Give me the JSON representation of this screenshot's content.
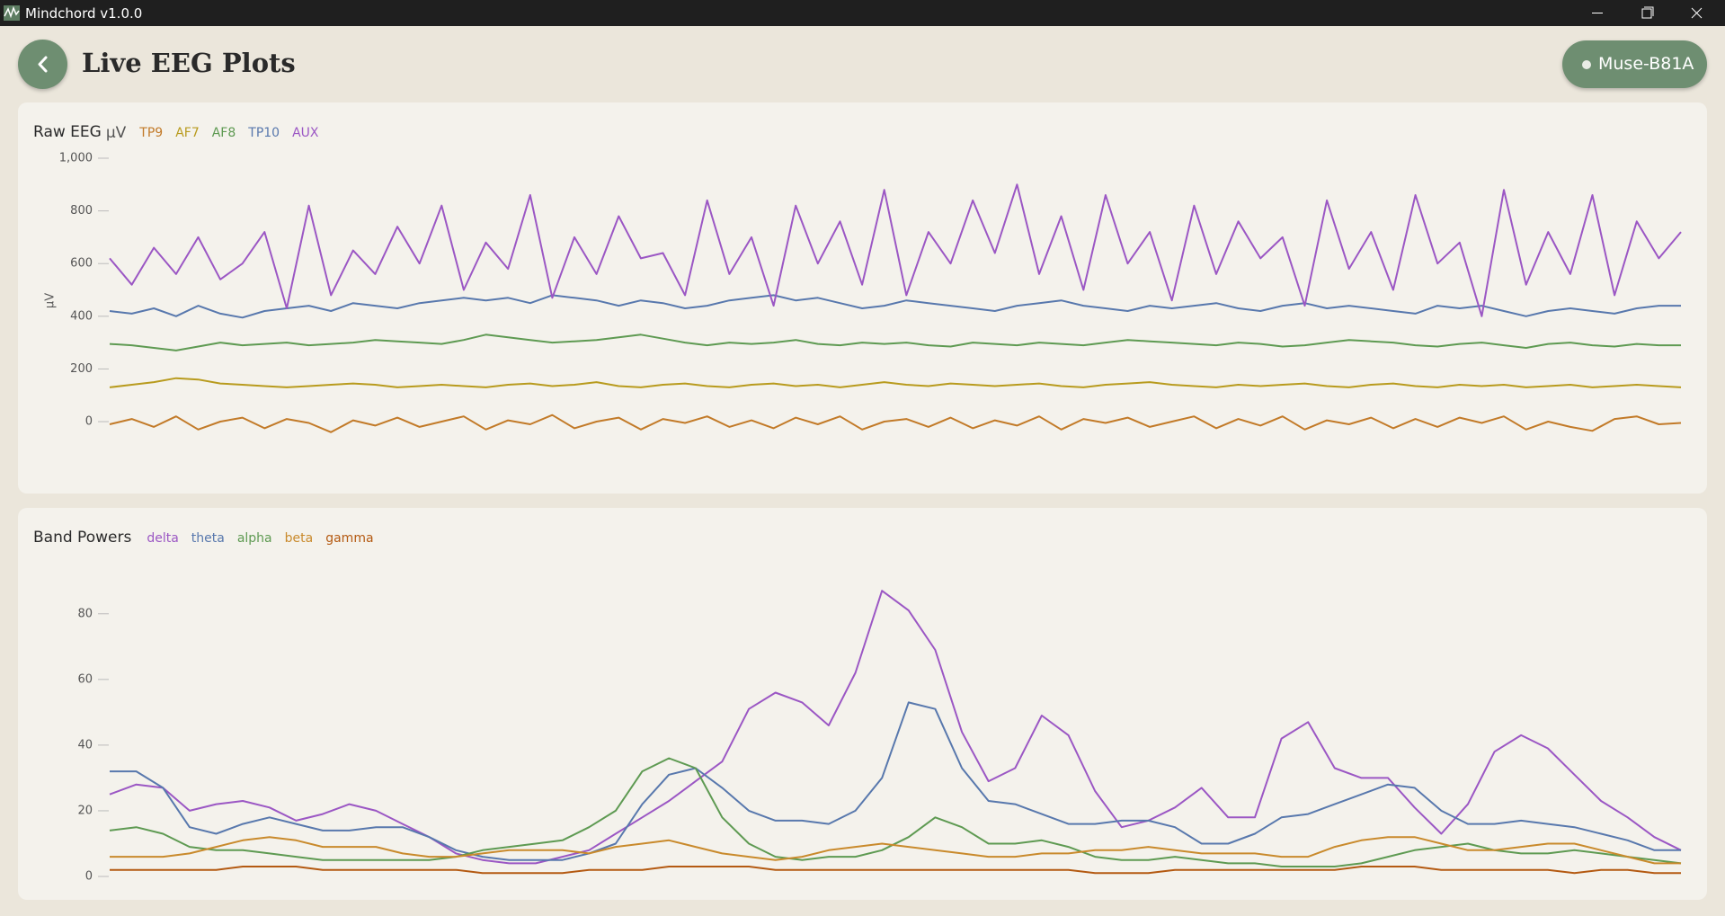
{
  "window": {
    "title": "Mindchord v1.0.0"
  },
  "header": {
    "title": "Live EEG Plots",
    "device": "Muse-B81A"
  },
  "chart_data": [
    {
      "type": "line",
      "title": "Raw EEG",
      "unit": "µV",
      "y_label": "µV",
      "ylim": [
        -150,
        1000
      ],
      "yticks": [
        0,
        200,
        400,
        600,
        800,
        {
          "value": 1000,
          "label": "1,000"
        }
      ],
      "series": [
        {
          "name": "TP9",
          "color": "#c27a28",
          "values": [
            -10,
            10,
            -20,
            20,
            -30,
            0,
            15,
            -25,
            10,
            -5,
            -40,
            5,
            -15,
            15,
            -20,
            0,
            20,
            -30,
            5,
            -10,
            25,
            -25,
            0,
            15,
            -30,
            10,
            -5,
            20,
            -20,
            5,
            -25,
            15,
            -10,
            20,
            -30,
            0,
            10,
            -20,
            15,
            -25,
            5,
            -15,
            20,
            -30,
            10,
            -5,
            15,
            -20,
            0,
            20,
            -25,
            10,
            -15,
            20,
            -30,
            5,
            -10,
            15,
            -25,
            10,
            -20,
            15,
            -5,
            20,
            -30,
            0,
            -20,
            -35,
            10,
            20,
            -10,
            -5
          ]
        },
        {
          "name": "AF7",
          "color": "#b89b1e",
          "values": [
            130,
            140,
            150,
            165,
            160,
            145,
            140,
            135,
            130,
            135,
            140,
            145,
            140,
            130,
            135,
            140,
            135,
            130,
            140,
            145,
            135,
            140,
            150,
            135,
            130,
            140,
            145,
            135,
            130,
            140,
            145,
            135,
            140,
            130,
            140,
            150,
            140,
            135,
            145,
            140,
            135,
            140,
            145,
            135,
            130,
            140,
            145,
            150,
            140,
            135,
            130,
            140,
            135,
            140,
            145,
            135,
            130,
            140,
            145,
            135,
            130,
            140,
            135,
            140,
            130,
            135,
            140,
            130,
            135,
            140,
            135,
            130
          ]
        },
        {
          "name": "AF8",
          "color": "#5e9a52",
          "values": [
            295,
            290,
            280,
            270,
            285,
            300,
            290,
            295,
            300,
            290,
            295,
            300,
            310,
            305,
            300,
            295,
            310,
            330,
            320,
            310,
            300,
            305,
            310,
            320,
            330,
            315,
            300,
            290,
            300,
            295,
            300,
            310,
            295,
            290,
            300,
            295,
            300,
            290,
            285,
            300,
            295,
            290,
            300,
            295,
            290,
            300,
            310,
            305,
            300,
            295,
            290,
            300,
            295,
            285,
            290,
            300,
            310,
            305,
            300,
            290,
            285,
            295,
            300,
            290,
            280,
            295,
            300,
            290,
            285,
            295,
            290,
            290
          ]
        },
        {
          "name": "TP10",
          "color": "#5878ad",
          "values": [
            420,
            410,
            430,
            400,
            440,
            410,
            395,
            420,
            430,
            440,
            420,
            450,
            440,
            430,
            450,
            460,
            470,
            460,
            470,
            450,
            480,
            470,
            460,
            440,
            460,
            450,
            430,
            440,
            460,
            470,
            480,
            460,
            470,
            450,
            430,
            440,
            460,
            450,
            440,
            430,
            420,
            440,
            450,
            460,
            440,
            430,
            420,
            440,
            430,
            440,
            450,
            430,
            420,
            440,
            450,
            430,
            440,
            430,
            420,
            410,
            440,
            430,
            440,
            420,
            400,
            420,
            430,
            420,
            410,
            430,
            440,
            440
          ]
        },
        {
          "name": "AUX",
          "color": "#9b57c4",
          "values": [
            620,
            520,
            660,
            560,
            700,
            540,
            600,
            720,
            430,
            820,
            480,
            650,
            560,
            740,
            600,
            820,
            500,
            680,
            580,
            860,
            470,
            700,
            560,
            780,
            620,
            640,
            480,
            840,
            560,
            700,
            440,
            820,
            600,
            760,
            520,
            880,
            480,
            720,
            600,
            840,
            640,
            900,
            560,
            780,
            500,
            860,
            600,
            720,
            460,
            820,
            560,
            760,
            620,
            700,
            440,
            840,
            580,
            720,
            500,
            860,
            600,
            680,
            400,
            880,
            520,
            720,
            560,
            860,
            480,
            760,
            620,
            720
          ]
        }
      ]
    },
    {
      "type": "line",
      "title": "Band Powers",
      "ylim": [
        0,
        95
      ],
      "yticks": [
        0,
        20,
        40,
        60,
        80
      ],
      "series": [
        {
          "name": "delta",
          "color": "#9b57c4",
          "values": [
            25,
            28,
            27,
            20,
            22,
            23,
            21,
            17,
            19,
            22,
            20,
            16,
            12,
            7,
            5,
            4,
            4,
            6,
            8,
            13,
            18,
            23,
            29,
            35,
            51,
            56,
            53,
            46,
            62,
            87,
            81,
            69,
            44,
            29,
            33,
            49,
            43,
            26,
            15,
            17,
            21,
            27,
            18,
            18,
            42,
            47,
            33,
            30,
            30,
            21,
            13,
            22,
            38,
            43,
            39,
            31,
            23,
            18,
            12,
            8
          ]
        },
        {
          "name": "theta",
          "color": "#5878ad",
          "values": [
            32,
            32,
            27,
            15,
            13,
            16,
            18,
            16,
            14,
            14,
            15,
            15,
            12,
            8,
            6,
            5,
            5,
            5,
            7,
            10,
            22,
            31,
            33,
            27,
            20,
            17,
            17,
            16,
            20,
            30,
            53,
            51,
            33,
            23,
            22,
            19,
            16,
            16,
            17,
            17,
            15,
            10,
            10,
            13,
            18,
            19,
            22,
            25,
            28,
            27,
            20,
            16,
            16,
            17,
            16,
            15,
            13,
            11,
            8,
            8
          ]
        },
        {
          "name": "alpha",
          "color": "#5e9a52",
          "values": [
            14,
            15,
            13,
            9,
            8,
            8,
            7,
            6,
            5,
            5,
            5,
            5,
            5,
            6,
            8,
            9,
            10,
            11,
            15,
            20,
            32,
            36,
            33,
            18,
            10,
            6,
            5,
            6,
            6,
            8,
            12,
            18,
            15,
            10,
            10,
            11,
            9,
            6,
            5,
            5,
            6,
            5,
            4,
            4,
            3,
            3,
            3,
            4,
            6,
            8,
            9,
            10,
            8,
            7,
            7,
            8,
            7,
            6,
            5,
            4
          ]
        },
        {
          "name": "beta",
          "color": "#c98a2c",
          "values": [
            6,
            6,
            6,
            7,
            9,
            11,
            12,
            11,
            9,
            9,
            9,
            7,
            6,
            6,
            7,
            8,
            8,
            8,
            7,
            9,
            10,
            11,
            9,
            7,
            6,
            5,
            6,
            8,
            9,
            10,
            9,
            8,
            7,
            6,
            6,
            7,
            7,
            8,
            8,
            9,
            8,
            7,
            7,
            7,
            6,
            6,
            9,
            11,
            12,
            12,
            10,
            8,
            8,
            9,
            10,
            10,
            8,
            6,
            4,
            4
          ]
        },
        {
          "name": "gamma",
          "color": "#b45a12",
          "values": [
            2,
            2,
            2,
            2,
            2,
            3,
            3,
            3,
            2,
            2,
            2,
            2,
            2,
            2,
            1,
            1,
            1,
            1,
            2,
            2,
            2,
            3,
            3,
            3,
            3,
            2,
            2,
            2,
            2,
            2,
            2,
            2,
            2,
            2,
            2,
            2,
            2,
            1,
            1,
            1,
            2,
            2,
            2,
            2,
            2,
            2,
            2,
            3,
            3,
            3,
            2,
            2,
            2,
            2,
            2,
            1,
            2,
            2,
            1,
            1
          ]
        }
      ]
    }
  ]
}
